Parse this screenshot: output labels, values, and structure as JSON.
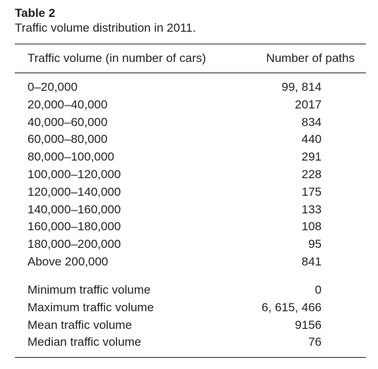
{
  "caption": {
    "label": "Table 2",
    "description": "Traffic volume distribution in 2011."
  },
  "table": {
    "headers": [
      "Traffic volume (in number of cars)",
      "Number of paths"
    ],
    "distribution_rows": [
      {
        "range": "0–20,000",
        "paths": "99, 814"
      },
      {
        "range": "20,000–40,000",
        "paths": "2017"
      },
      {
        "range": "40,000–60,000",
        "paths": "834"
      },
      {
        "range": "60,000–80,000",
        "paths": "440"
      },
      {
        "range": "80,000–100,000",
        "paths": "291"
      },
      {
        "range": "100,000–120,000",
        "paths": "228"
      },
      {
        "range": "120,000–140,000",
        "paths": "175"
      },
      {
        "range": "140,000–160,000",
        "paths": "133"
      },
      {
        "range": "160,000–180,000",
        "paths": "108"
      },
      {
        "range": "180,000–200,000",
        "paths": "95"
      },
      {
        "range": "Above 200,000",
        "paths": "841"
      }
    ],
    "summary_rows": [
      {
        "label": "Minimum traffic volume",
        "value": "0"
      },
      {
        "label": "Maximum traffic volume",
        "value": "6, 615, 466"
      },
      {
        "label": "Mean traffic volume",
        "value": "9156"
      },
      {
        "label": "Median traffic volume",
        "value": "76"
      }
    ]
  }
}
